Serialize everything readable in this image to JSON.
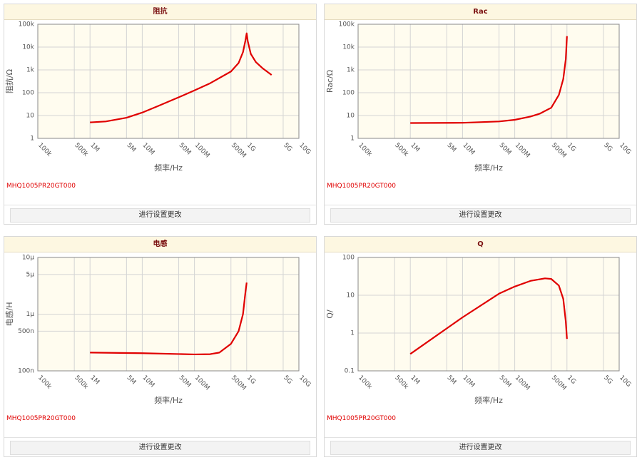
{
  "chart_data": [
    {
      "type": "line",
      "title": "阻抗",
      "xlabel": "频率/Hz",
      "ylabel": "阻抗/Ω",
      "xlog": true,
      "ylog": true,
      "grid": true,
      "part_number": "MHQ1005PR20GT000",
      "button": "进行设置更改",
      "xlim": [
        100000,
        10000000000
      ],
      "ylim": [
        1,
        100000
      ],
      "xticks": [
        {
          "value": 100000,
          "label": "100k"
        },
        {
          "value": 500000,
          "label": "500k"
        },
        {
          "value": 1000000,
          "label": "1M"
        },
        {
          "value": 5000000,
          "label": "5M"
        },
        {
          "value": 10000000,
          "label": "10M"
        },
        {
          "value": 50000000,
          "label": "50M"
        },
        {
          "value": 100000000,
          "label": "100M"
        },
        {
          "value": 500000000,
          "label": "500M"
        },
        {
          "value": 1000000000,
          "label": "1G"
        },
        {
          "value": 5000000000,
          "label": "5G"
        },
        {
          "value": 10000000000,
          "label": "10G"
        }
      ],
      "yticks": [
        {
          "value": 100000,
          "label": "100k"
        },
        {
          "value": 10000,
          "label": "10k"
        },
        {
          "value": 1000,
          "label": "1k"
        },
        100,
        10,
        1
      ],
      "x": [
        1000000,
        2000000,
        5000000,
        10000000,
        20000000,
        50000000,
        100000000,
        200000000,
        500000000,
        700000000,
        850000000,
        950000000,
        1000000000,
        1050000000,
        1200000000,
        1500000000,
        2000000000,
        3000000000
      ],
      "series": [
        {
          "color": "#e00000",
          "values": [
            5,
            5.5,
            8,
            13.5,
            26,
            63,
            126,
            260,
            850,
            2000,
            6000,
            20000,
            40000,
            18000,
            5000,
            2200,
            1200,
            600
          ]
        }
      ]
    },
    {
      "type": "line",
      "title": "Rac",
      "xlabel": "频率/Hz",
      "ylabel": "Rac/Ω",
      "xlog": true,
      "ylog": true,
      "grid": true,
      "part_number": "MHQ1005PR20GT000",
      "button": "进行设置更改",
      "xlim": [
        100000,
        10000000000
      ],
      "ylim": [
        1,
        100000
      ],
      "xticks": [
        {
          "value": 100000,
          "label": "100k"
        },
        {
          "value": 500000,
          "label": "500k"
        },
        {
          "value": 1000000,
          "label": "1M"
        },
        {
          "value": 5000000,
          "label": "5M"
        },
        {
          "value": 10000000,
          "label": "10M"
        },
        {
          "value": 50000000,
          "label": "50M"
        },
        {
          "value": 100000000,
          "label": "100M"
        },
        {
          "value": 500000000,
          "label": "500M"
        },
        {
          "value": 1000000000,
          "label": "1G"
        },
        {
          "value": 5000000000,
          "label": "5G"
        },
        {
          "value": 10000000000,
          "label": "10G"
        }
      ],
      "yticks": [
        {
          "value": 100000,
          "label": "100k"
        },
        {
          "value": 10000,
          "label": "10k"
        },
        {
          "value": 1000,
          "label": "1k"
        },
        100,
        10,
        1
      ],
      "x": [
        1000000,
        10000000,
        50000000,
        100000000,
        200000000,
        300000000,
        500000000,
        700000000,
        850000000,
        950000000,
        1000000000
      ],
      "series": [
        {
          "color": "#e00000",
          "values": [
            4.7,
            4.8,
            5.5,
            6.5,
            9,
            12,
            22,
            80,
            400,
            3000,
            30000
          ]
        }
      ]
    },
    {
      "type": "line",
      "title": "电感",
      "xlabel": "频率/Hz",
      "ylabel": "电感/H",
      "xlog": true,
      "ylog": true,
      "grid": true,
      "part_number": "MHQ1005PR20GT000",
      "button": "进行设置更改",
      "xlim": [
        100000,
        10000000000
      ],
      "ylim": [
        1e-07,
        1e-05
      ],
      "xticks": [
        {
          "value": 100000,
          "label": "100k"
        },
        {
          "value": 500000,
          "label": "500k"
        },
        {
          "value": 1000000,
          "label": "1M"
        },
        {
          "value": 5000000,
          "label": "5M"
        },
        {
          "value": 10000000,
          "label": "10M"
        },
        {
          "value": 50000000,
          "label": "50M"
        },
        {
          "value": 100000000,
          "label": "100M"
        },
        {
          "value": 500000000,
          "label": "500M"
        },
        {
          "value": 1000000000,
          "label": "1G"
        },
        {
          "value": 5000000000,
          "label": "5G"
        },
        {
          "value": 10000000000,
          "label": "10G"
        }
      ],
      "yticks": [
        {
          "value": 1e-05,
          "label": "10μ"
        },
        {
          "value": 5e-06,
          "label": "5μ"
        },
        {
          "value": 1e-06,
          "label": "1μ"
        },
        {
          "value": 5e-07,
          "label": "500n"
        },
        {
          "value": 1e-07,
          "label": "100n"
        }
      ],
      "x": [
        1000000,
        10000000,
        50000000,
        100000000,
        200000000,
        300000000,
        500000000,
        700000000,
        850000000,
        950000000,
        1000000000
      ],
      "series": [
        {
          "color": "#e00000",
          "values": [
            2.1e-07,
            2.05e-07,
            1.98e-07,
            1.95e-07,
            1.97e-07,
            2.1e-07,
            3e-07,
            5e-07,
            1e-06,
            2.5e-06,
            3.6e-06
          ]
        }
      ]
    },
    {
      "type": "line",
      "title": "Q",
      "xlabel": "频率/Hz",
      "ylabel": "Q/",
      "xlog": true,
      "ylog": true,
      "grid": true,
      "part_number": "MHQ1005PR20GT000",
      "button": "进行设置更改",
      "xlim": [
        100000,
        10000000000
      ],
      "ylim": [
        0.1,
        100
      ],
      "xticks": [
        {
          "value": 100000,
          "label": "100k"
        },
        {
          "value": 500000,
          "label": "500k"
        },
        {
          "value": 1000000,
          "label": "1M"
        },
        {
          "value": 5000000,
          "label": "5M"
        },
        {
          "value": 10000000,
          "label": "10M"
        },
        {
          "value": 50000000,
          "label": "50M"
        },
        {
          "value": 100000000,
          "label": "100M"
        },
        {
          "value": 500000000,
          "label": "500M"
        },
        {
          "value": 1000000000,
          "label": "1G"
        },
        {
          "value": 5000000000,
          "label": "5G"
        },
        {
          "value": 10000000000,
          "label": "10G"
        }
      ],
      "yticks": [
        100,
        10,
        1,
        0.1
      ],
      "x": [
        1000000,
        10000000,
        50000000,
        100000000,
        200000000,
        380000000,
        500000000,
        700000000,
        850000000,
        950000000,
        1000000000
      ],
      "series": [
        {
          "color": "#e00000",
          "values": [
            0.28,
            2.6,
            11,
            17,
            24,
            28,
            27,
            18,
            8,
            2,
            0.7
          ]
        }
      ]
    }
  ]
}
